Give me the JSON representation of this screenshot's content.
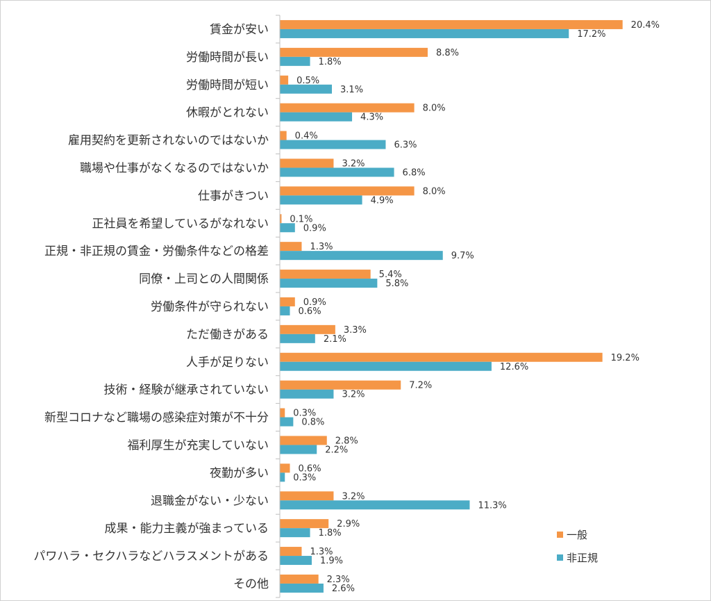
{
  "chart_data": {
    "type": "bar",
    "orientation": "horizontal",
    "categories": [
      "賃金が安い",
      "労働時間が長い",
      "労働時間が短い",
      "休暇がとれない",
      "雇用契約を更新されないのではないか",
      "職場や仕事がなくなるのではないか",
      "仕事がきつい",
      "正社員を希望しているがなれない",
      "正規・非正規の賃金・労働条件などの格差",
      "同僚・上司との人間関係",
      "労働条件が守られない",
      "ただ働きがある",
      "人手が足りない",
      "技術・経験が継承されていない",
      "新型コロナなど職場の感染症対策が不十分",
      "福利厚生が充実していない",
      "夜勤が多い",
      "退職金がない・少ない",
      "成果・能力主義が強まっている",
      "パワハラ・セクハラなどハラスメントがある",
      "その他"
    ],
    "series": [
      {
        "name": "一般",
        "color": "#F59646",
        "values": [
          20.4,
          8.8,
          0.5,
          8.0,
          0.4,
          3.2,
          8.0,
          0.1,
          1.3,
          5.4,
          0.9,
          3.3,
          19.2,
          7.2,
          0.3,
          2.8,
          0.6,
          3.2,
          2.9,
          1.3,
          2.3
        ],
        "labels": [
          "20.4%",
          "8.8%",
          "0.5%",
          "8.0%",
          "0.4%",
          "3.2%",
          "8.0%",
          "0.1%",
          "1.3%",
          "5.4%",
          "0.9%",
          "3.3%",
          "19.2%",
          "7.2%",
          "0.3%",
          "2.8%",
          "0.6%",
          "3.2%",
          "2.9%",
          "1.3%",
          "2.3%"
        ]
      },
      {
        "name": "非正規",
        "color": "#4BACC6",
        "values": [
          17.2,
          1.8,
          3.1,
          4.3,
          6.3,
          6.8,
          4.9,
          0.9,
          9.7,
          5.8,
          0.6,
          2.1,
          12.6,
          3.2,
          0.8,
          2.2,
          0.3,
          11.3,
          1.8,
          1.9,
          2.6
        ],
        "labels": [
          "17.2%",
          "1.8%",
          "3.1%",
          "4.3%",
          "6.3%",
          "6.8%",
          "4.9%",
          "0.9%",
          "9.7%",
          "5.8%",
          "0.6%",
          "2.1%",
          "12.6%",
          "3.2%",
          "0.8%",
          "2.2%",
          "0.3%",
          "11.3%",
          "1.8%",
          "1.9%",
          "2.6%"
        ]
      }
    ],
    "xlim": [
      0,
      22
    ],
    "grid": false,
    "legend_position": "bottom-right",
    "title": "",
    "xlabel": "",
    "ylabel": ""
  }
}
